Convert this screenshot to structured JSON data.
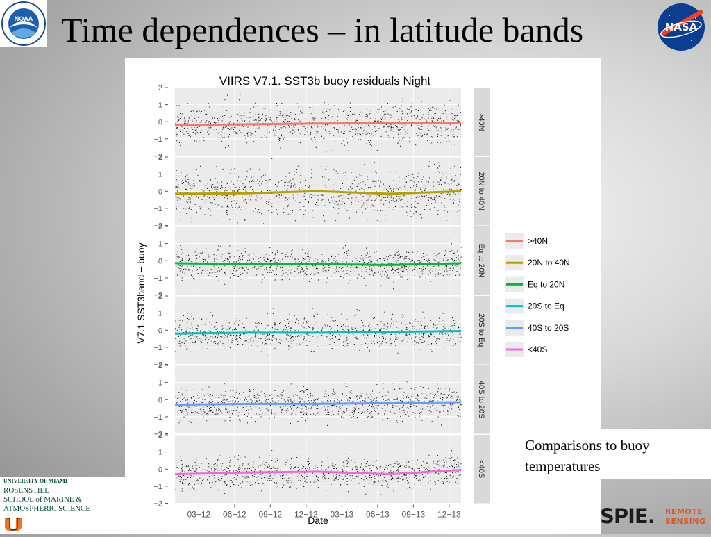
{
  "slide": {
    "title": "Time dependences – in latitude bands",
    "caption": "Comparisons to buoy temperatures",
    "left_logo_text": "NOAA",
    "right_logo_text": "NASA",
    "umiami": {
      "line1": "UNIVERSITY OF MIAMI",
      "line2": "ROSENSTIEL",
      "line3": "SCHOOL of MARINE &",
      "line4": "ATMOSPHERIC SCIENCE"
    },
    "spie": {
      "word": "SPIE",
      "remote": "REMOTE",
      "sensing": "SENSING"
    }
  },
  "colors": {
    "gt40N": "#F8766D",
    "20Nto40N": "#B79F00",
    "Eqto20N": "#00BA38",
    "20StoEq": "#00BFC4",
    "40Sto20S": "#619CFF",
    "lt40S": "#F564E3",
    "strip_bg": "#D9D9D9",
    "panel_bg": "#EBEBEB"
  },
  "chart_data": {
    "type": "scatter",
    "title": "VIIRS V7.1. SST3b buoy residuals Night",
    "xlabel": "Date",
    "ylabel": "V7.1 SST3band − buoy",
    "x_ticks": [
      "03−12",
      "06−12",
      "09−12",
      "12−12",
      "03−13",
      "06−13",
      "09−13",
      "12−13"
    ],
    "y_ticks": [
      "−2",
      "−1",
      "0",
      "1",
      "2"
    ],
    "ylim": [
      -2,
      2
    ],
    "x_range": [
      "2012-01",
      "2014-01"
    ],
    "legend_position": "right",
    "legend_entries": [
      ">40N",
      "20N to 40N",
      "Eq to 20N",
      "20S to Eq",
      "40S to 20S",
      "<40S"
    ],
    "facets": [
      {
        "name": ">40N",
        "color_key": "gt40N",
        "trend_x": [
          "2012-01",
          "2012-07",
          "2013-01",
          "2013-07",
          "2014-01"
        ],
        "trend_y": [
          -0.2,
          -0.15,
          -0.1,
          -0.08,
          -0.05
        ],
        "spread": 0.55
      },
      {
        "name": "20N to 40N",
        "color_key": "20Nto40N",
        "trend_x": [
          "2012-01",
          "2012-07",
          "2013-01",
          "2013-07",
          "2014-01"
        ],
        "trend_y": [
          -0.15,
          -0.12,
          0.0,
          -0.15,
          0.0
        ],
        "spread": 0.7
      },
      {
        "name": "Eq to 20N",
        "color_key": "Eqto20N",
        "trend_x": [
          "2012-01",
          "2012-07",
          "2013-01",
          "2013-07",
          "2014-01"
        ],
        "trend_y": [
          -0.15,
          -0.2,
          -0.2,
          -0.25,
          -0.15
        ],
        "spread": 0.45
      },
      {
        "name": "20S to Eq",
        "color_key": "20StoEq",
        "trend_x": [
          "2012-01",
          "2012-07",
          "2013-01",
          "2013-07",
          "2014-01"
        ],
        "trend_y": [
          -0.2,
          -0.15,
          -0.15,
          -0.1,
          -0.05
        ],
        "spread": 0.45
      },
      {
        "name": "40S to 20S",
        "color_key": "40Sto20S",
        "trend_x": [
          "2012-01",
          "2012-07",
          "2013-01",
          "2013-07",
          "2014-01"
        ],
        "trend_y": [
          -0.3,
          -0.25,
          -0.25,
          -0.2,
          -0.15
        ],
        "spread": 0.45
      },
      {
        "name": "<40S",
        "color_key": "lt40S",
        "trend_x": [
          "2012-01",
          "2012-07",
          "2013-01",
          "2013-07",
          "2014-01"
        ],
        "trend_y": [
          -0.3,
          -0.2,
          -0.15,
          -0.3,
          -0.05
        ],
        "spread": 0.45
      }
    ]
  }
}
